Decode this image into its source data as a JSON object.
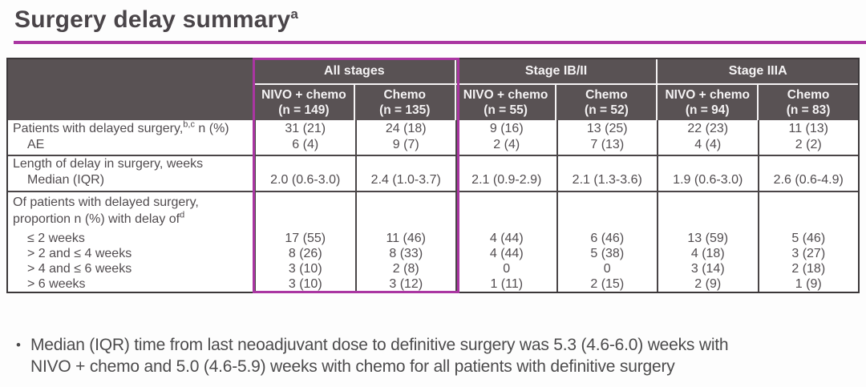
{
  "title": {
    "text": "Surgery delay summary",
    "superscript": "a"
  },
  "table": {
    "groups": [
      {
        "label": "All stages"
      },
      {
        "label": "Stage IB/II"
      },
      {
        "label": "Stage IIIA"
      }
    ],
    "columns": [
      {
        "arm": "NIVO + chemo",
        "n": "(n = 149)"
      },
      {
        "arm": "Chemo",
        "n": "(n = 135)"
      },
      {
        "arm": "NIVO + chemo",
        "n": "(n = 55)"
      },
      {
        "arm": "Chemo",
        "n": "(n = 52)"
      },
      {
        "arm": "NIVO + chemo",
        "n": "(n = 94)"
      },
      {
        "arm": "Chemo",
        "n": "(n = 83)"
      }
    ],
    "delayed_surgery": {
      "label": "Patients with delayed surgery,",
      "label_sup": "b,c",
      "label_rest": " n (%)",
      "sublabel": "AE",
      "values": [
        "31 (21)",
        "24 (18)",
        "9 (16)",
        "13 (25)",
        "22 (23)",
        "11 (13)"
      ],
      "ae_values": [
        "6 (4)",
        "9 (7)",
        "2 (4)",
        "7 (13)",
        "4 (4)",
        "2 (2)"
      ]
    },
    "delay_length": {
      "label": "Length of delay in surgery, weeks",
      "sublabel": "Median (IQR)",
      "values": [
        "2.0 (0.6-3.0)",
        "2.4 (1.0-3.7)",
        "2.1 (0.9-2.9)",
        "2.1 (1.3-3.6)",
        "1.9 (0.6-3.0)",
        "2.6 (0.6-4.9)"
      ]
    },
    "delay_distribution": {
      "label_line1": "Of patients with delayed surgery,",
      "label_line2": "proportion n (%) with delay of",
      "label_sup": "d",
      "bins": [
        {
          "label": "≤ 2 weeks",
          "values": [
            "17 (55)",
            "11 (46)",
            "4 (44)",
            "6 (46)",
            "13 (59)",
            "5 (46)"
          ]
        },
        {
          "label": "> 2 and ≤ 4 weeks",
          "values": [
            "8 (26)",
            "8 (33)",
            "4 (44)",
            "5 (38)",
            "4 (18)",
            "3 (27)"
          ]
        },
        {
          "label": "> 4 and ≤ 6 weeks",
          "values": [
            "3 (10)",
            "2 (8)",
            "0",
            "0",
            "3 (14)",
            "2 (18)"
          ]
        },
        {
          "label": "> 6 weeks",
          "values": [
            "3 (10)",
            "3 (12)",
            "1 (11)",
            "2 (15)",
            "2 (9)",
            "1 (9)"
          ]
        }
      ]
    }
  },
  "footer": {
    "bullet": "•",
    "line1": "Median (IQR) time from last neoadjuvant dose to definitive surgery was 5.3 (4.6-6.0) weeks with",
    "line2": "NIVO + chemo and 5.0 (4.6-5.9) weeks with chemo for all patients with definitive surgery"
  }
}
